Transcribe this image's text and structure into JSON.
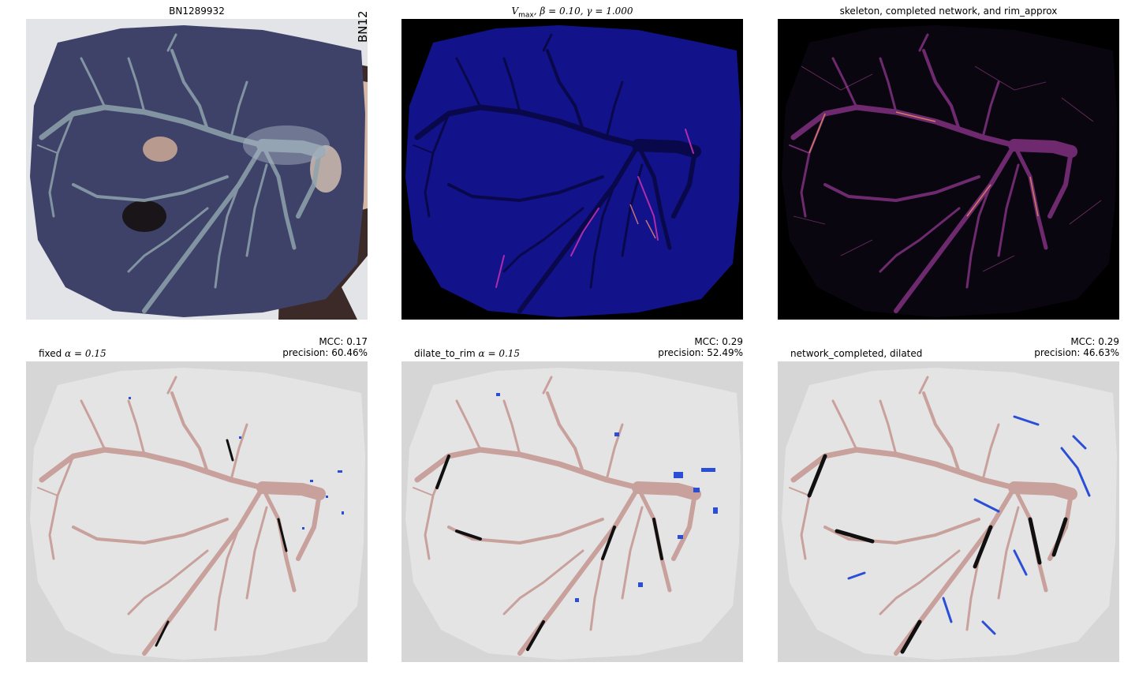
{
  "panels": [
    {
      "id": "photo",
      "title": "BN1289932",
      "side_label": "BN12"
    },
    {
      "id": "vmax",
      "title_parts": {
        "v": "V",
        "sub": "max",
        "rest": ", β = 0.10, γ = 1.000"
      }
    },
    {
      "id": "skeleton",
      "title": "skeleton, completed network, and rim_approx"
    },
    {
      "id": "fixed",
      "title_left_text": "fixed ",
      "title_left_math": "α = 0.15",
      "mcc": "MCC: 0.17",
      "precision": "precision: 60.46%"
    },
    {
      "id": "dilate",
      "title_left_text": "dilate_to_rim ",
      "title_left_math": "α = 0.15",
      "mcc": "MCC: 0.29",
      "precision": "precision: 52.49%"
    },
    {
      "id": "network",
      "title_left_text": "network_completed, dilated",
      "title_left_math": "",
      "mcc": "MCC: 0.29",
      "precision": "precision: 46.63%"
    }
  ],
  "colors": {
    "true_positive": "#c8a09c",
    "false_negative": "#101010",
    "false_positive": "#2a4fd6",
    "mask_inside": "#e4e4e4",
    "mask_outside": "#d6d6d6",
    "vmax_background": "#12128a",
    "placenta": "#3e4268"
  }
}
